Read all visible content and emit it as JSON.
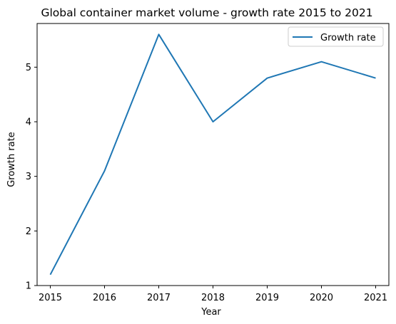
{
  "chart_data": {
    "type": "line",
    "title": "Global container market volume - growth rate 2015 to 2021",
    "xlabel": "Year",
    "ylabel": "Growth rate",
    "x": [
      "2015",
      "2016",
      "2017",
      "2018",
      "2019",
      "2020",
      "2021"
    ],
    "series": [
      {
        "name": "Growth rate",
        "values": [
          1.2,
          3.1,
          5.6,
          4.0,
          4.8,
          5.1,
          4.8
        ],
        "color": "#1f77b4"
      }
    ],
    "yticks": [
      "1",
      "2",
      "3",
      "4",
      "5"
    ],
    "ylim": [
      1.0,
      5.8
    ],
    "grid": false,
    "legend_position": "top-right"
  }
}
